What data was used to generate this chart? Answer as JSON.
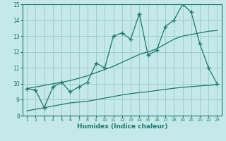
{
  "x": [
    1,
    2,
    3,
    4,
    5,
    6,
    7,
    8,
    9,
    10,
    11,
    12,
    13,
    14,
    15,
    16,
    17,
    18,
    19,
    20,
    21,
    22,
    23
  ],
  "line1_y": [
    9.7,
    9.6,
    8.5,
    9.8,
    10.1,
    9.5,
    9.8,
    10.1,
    11.3,
    11.0,
    13.0,
    13.2,
    12.8,
    14.4,
    11.8,
    12.1,
    13.6,
    14.0,
    15.0,
    14.5,
    12.5,
    11.0,
    10.0
  ],
  "line2_y": [
    9.7,
    9.8,
    9.9,
    10.0,
    10.1,
    10.2,
    10.35,
    10.5,
    10.7,
    10.9,
    11.1,
    11.35,
    11.6,
    11.85,
    12.0,
    12.2,
    12.5,
    12.8,
    13.0,
    13.1,
    13.2,
    13.3,
    13.35
  ],
  "line3_y": [
    8.3,
    8.4,
    8.5,
    8.6,
    8.7,
    8.8,
    8.85,
    8.9,
    9.0,
    9.1,
    9.2,
    9.3,
    9.38,
    9.45,
    9.5,
    9.58,
    9.65,
    9.72,
    9.78,
    9.82,
    9.87,
    9.9,
    9.95
  ],
  "color": "#1a7a6e",
  "bg_color": "#c5e8e8",
  "grid_color": "#9ecece",
  "xlabel": "Humidex (Indice chaleur)",
  "xlim": [
    0.5,
    23.5
  ],
  "ylim": [
    8,
    15
  ],
  "yticks": [
    8,
    9,
    10,
    11,
    12,
    13,
    14,
    15
  ],
  "xticks": [
    1,
    2,
    3,
    4,
    5,
    6,
    7,
    8,
    9,
    10,
    11,
    12,
    13,
    14,
    15,
    16,
    17,
    18,
    19,
    20,
    21,
    22,
    23
  ]
}
